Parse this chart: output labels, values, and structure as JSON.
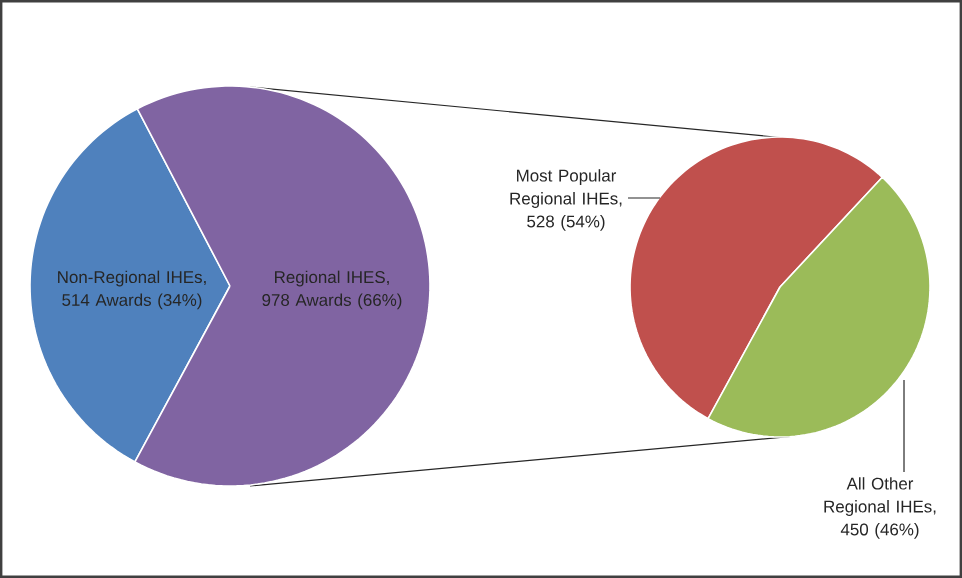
{
  "chart_data": [
    {
      "type": "pie",
      "categories": [
        "Non-Regional IHEs, 514 Awards (34%)",
        "Regional IHES, 978 Awards (66%)"
      ],
      "values": [
        514,
        978
      ],
      "colors": [
        "#4f81bd",
        "#8064a2"
      ]
    },
    {
      "type": "pie",
      "categories": [
        "Most Popular Regional IHEs, 528 (54%)",
        "All Other Regional IHEs, 450 (46%)"
      ],
      "values": [
        528,
        450
      ],
      "colors": [
        "#c0504d",
        "#9bbb59"
      ]
    }
  ]
}
